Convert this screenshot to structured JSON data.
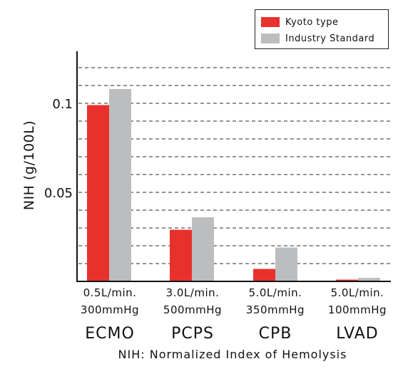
{
  "chart_data": {
    "type": "bar",
    "categories": [
      "ECMO",
      "PCPS",
      "CPB",
      "LVAD"
    ],
    "category_conditions": [
      {
        "line1": "0.5L/min.",
        "line2": "300mmHg"
      },
      {
        "line1": "3.0L/min.",
        "line2": "500mmHg"
      },
      {
        "line1": "5.0L/min.",
        "line2": "350mmHg"
      },
      {
        "line1": "5.0L/min.",
        "line2": "100mmHg"
      }
    ],
    "series": [
      {
        "name": "Kyoto type",
        "color": "#e8312d",
        "values": [
          0.099,
          0.029,
          0.007,
          0.001
        ]
      },
      {
        "name": "Industry Standard",
        "color": "#bcbdbf",
        "values": [
          0.108,
          0.036,
          0.019,
          0.002
        ]
      }
    ],
    "ylabel": "NIH (g/100L)",
    "yticks": [
      {
        "value": 0.05,
        "label": "0.05"
      },
      {
        "value": 0.1,
        "label": "0.1"
      }
    ],
    "ylim": [
      0,
      0.12
    ],
    "grid": "dashed horizontal",
    "legend_position": "top-right",
    "footnote": "NIH: Normalized Index of Hemolysis"
  }
}
